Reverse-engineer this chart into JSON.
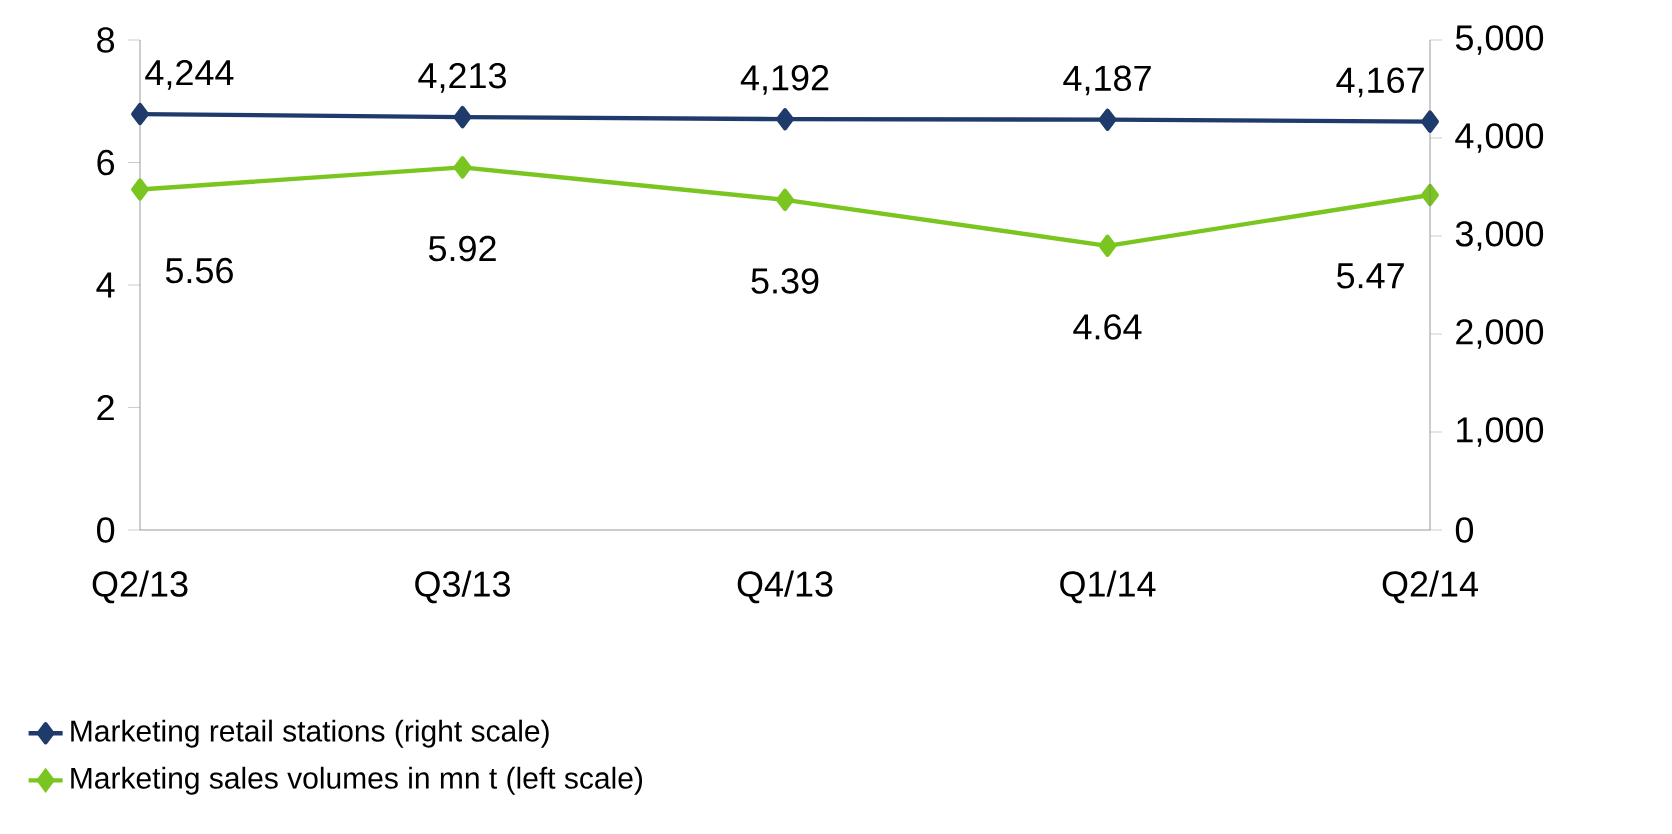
{
  "chart_data": {
    "type": "line",
    "categories": [
      "Q2/13",
      "Q3/13",
      "Q4/13",
      "Q1/14",
      "Q2/14"
    ],
    "series": [
      {
        "name": "Marketing retail stations (right scale)",
        "color": "#1f3b6b",
        "axis": "y2",
        "values": [
          4244,
          4213,
          4192,
          4187,
          4167
        ],
        "value_labels": [
          "4,244",
          "4,213",
          "4,192",
          "4,187",
          "4,167"
        ]
      },
      {
        "name": "Marketing sales volumes in mn t (left scale)",
        "color": "#7ac520",
        "values": [
          5.56,
          5.92,
          5.39,
          4.64,
          5.47
        ],
        "value_labels": [
          "5.56",
          "5.92",
          "5.39",
          "4.64",
          "5.47"
        ]
      }
    ],
    "ylim": [
      0,
      8
    ],
    "yticks": [
      0,
      2,
      4,
      6,
      8
    ],
    "y2lim": [
      0,
      5000
    ],
    "y2ticks": [
      0,
      {
        "value": 1000,
        "label": "1,000"
      },
      {
        "value": 2000,
        "label": "2,000"
      },
      {
        "value": 3000,
        "label": "3,000"
      },
      {
        "value": 4000,
        "label": "4,000"
      },
      {
        "value": 5000,
        "label": "5,000"
      }
    ],
    "marker": "diamond",
    "line_style": "solid",
    "legend": "bottom left",
    "grid": false
  }
}
